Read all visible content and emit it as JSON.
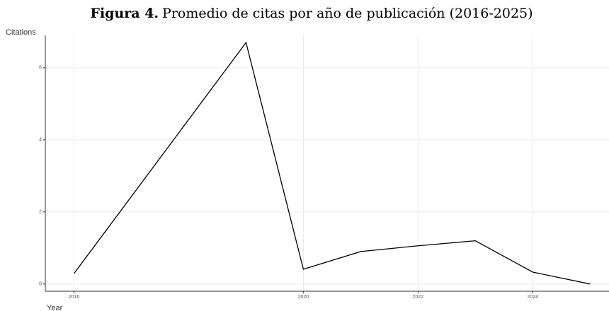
{
  "chart_data": {
    "type": "line",
    "title_prefix": "Figura 4.",
    "title": "Promedio de citas por año de publicación (2016-2025)",
    "y_label": "Citations",
    "x_label": "Year",
    "x": [
      2016,
      2019,
      2020,
      2021,
      2022,
      2023,
      2024,
      2025
    ],
    "series": [
      {
        "name": "Citations",
        "color": "#000000",
        "values": [
          0.29,
          6.7,
          0.41,
          0.9,
          1.06,
          1.2,
          0.33,
          0
        ]
      }
    ],
    "xlim": [
      2015.5,
      2025.33
    ],
    "ylim": [
      -0.2,
      6.9
    ],
    "xticks": [
      2016,
      2020,
      2022,
      2024
    ],
    "yticks": [
      0,
      2,
      4,
      6
    ],
    "grid": true
  }
}
